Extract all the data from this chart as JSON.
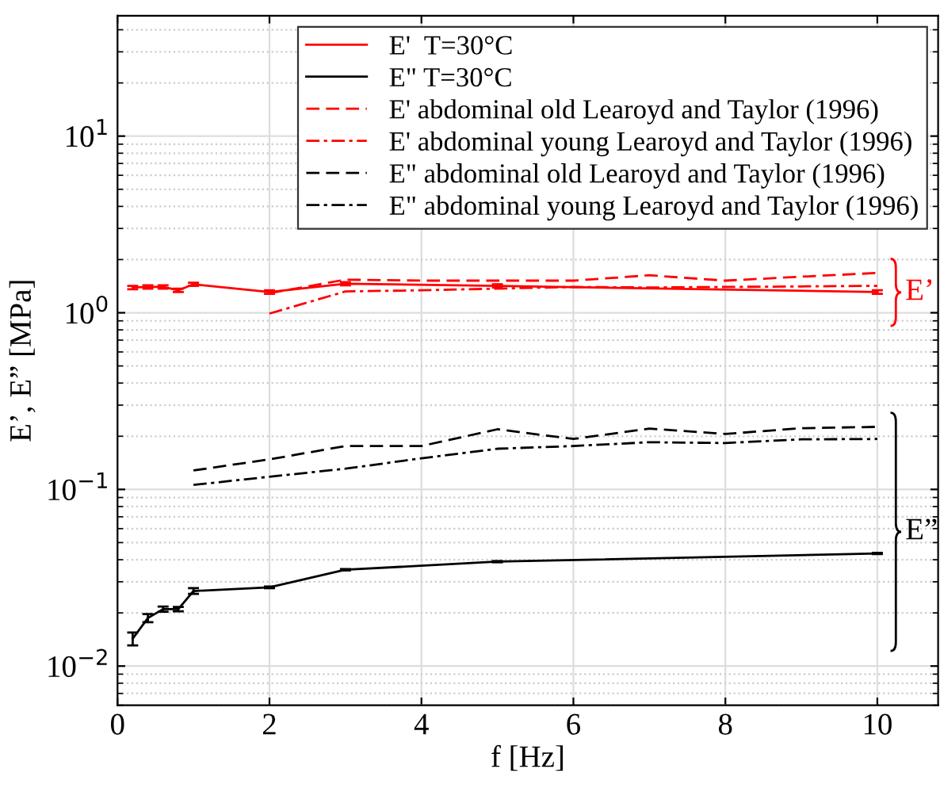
{
  "chart_data": {
    "type": "line",
    "xlabel": "f [Hz]",
    "ylabel": "E’, E” [MPa]",
    "xlim": [
      0,
      10.8
    ],
    "xticks": [
      0,
      2,
      4,
      6,
      8,
      10
    ],
    "ylim": [
      0.006,
      48
    ],
    "log": "y",
    "yticks": [
      {
        "value": 0.01,
        "label": "10$^{−2}$"
      },
      {
        "value": 0.1,
        "label": "10$^{−1}$"
      },
      {
        "value": 1,
        "label": "10$^{0}$"
      },
      {
        "value": 10,
        "label": "10$^{1}$"
      }
    ],
    "grid": true,
    "legend": "top right",
    "series": [
      {
        "name": "E'  T=30°C",
        "color": "#ff0000",
        "line_style": "solid",
        "x": [
          0.2,
          0.4,
          0.6,
          0.8,
          1.0,
          2,
          3,
          5,
          10
        ],
        "values": [
          1.39,
          1.4,
          1.4,
          1.34,
          1.45,
          1.31,
          1.46,
          1.42,
          1.31
        ],
        "errors": [
          0.03,
          0.03,
          0.03,
          0.03,
          0.03,
          0.03,
          0.03,
          0.03,
          0.03
        ]
      },
      {
        "name": "E\" T=30°C",
        "color": "#000000",
        "line_style": "solid",
        "x": [
          0.2,
          0.4,
          0.6,
          0.8,
          1.0,
          2,
          3,
          5,
          10
        ],
        "values": [
          0.0143,
          0.0187,
          0.021,
          0.021,
          0.0266,
          0.0279,
          0.0351,
          0.039,
          0.0434
        ],
        "errors": [
          0.0012,
          0.001,
          0.0007,
          0.0006,
          0.001,
          0.0003,
          0.0003,
          0.0003,
          0.0003
        ]
      },
      {
        "name": "E' abdominal old Learoyd and Taylor (1996)",
        "color": "#ff0000",
        "line_style": "dashed",
        "x": [
          2,
          3,
          4,
          5,
          6,
          7,
          8,
          9,
          10
        ],
        "values": [
          1.29,
          1.54,
          1.52,
          1.52,
          1.52,
          1.63,
          1.52,
          1.6,
          1.68
        ]
      },
      {
        "name": "E' abdominal young Learoyd and Taylor (1996)",
        "color": "#ff0000",
        "line_style": "dashdot",
        "x": [
          2,
          3,
          4,
          5,
          6,
          7,
          8,
          9,
          10
        ],
        "values": [
          0.99,
          1.32,
          1.34,
          1.37,
          1.4,
          1.39,
          1.4,
          1.41,
          1.42
        ]
      },
      {
        "name": "E\" abdominal old Learoyd and Taylor (1996)",
        "color": "#000000",
        "line_style": "dashed",
        "x": [
          1,
          2,
          3,
          4,
          5,
          6,
          7,
          8,
          9,
          10
        ],
        "values": [
          0.128,
          0.148,
          0.176,
          0.176,
          0.219,
          0.193,
          0.221,
          0.206,
          0.222,
          0.226
        ]
      },
      {
        "name": "E\" abdominal young Learoyd and Taylor (1996)",
        "color": "#000000",
        "line_style": "dashdot",
        "x": [
          1,
          2,
          3,
          4,
          5,
          6,
          7,
          8,
          9,
          10
        ],
        "values": [
          0.106,
          0.118,
          0.131,
          0.15,
          0.17,
          0.176,
          0.185,
          0.183,
          0.192,
          0.193
        ]
      }
    ],
    "annotations": [
      "E’",
      "E”"
    ]
  }
}
